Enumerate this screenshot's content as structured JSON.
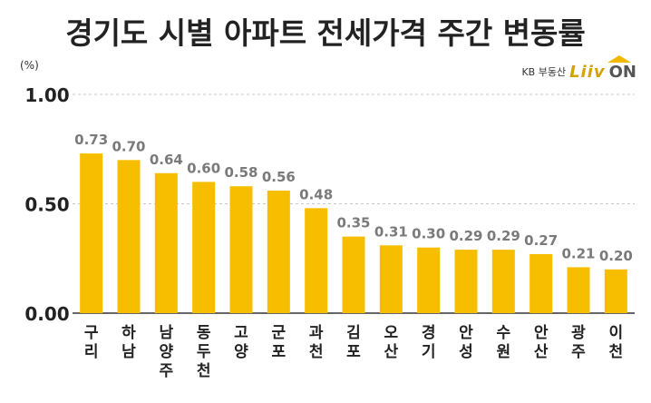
{
  "title": "경기도 시별 아파트 전세가격 주간 변동률",
  "unit_label": "(%)",
  "logo": {
    "text": "KB 부동산",
    "liiv": "Liiv",
    "on": "ON"
  },
  "colors": {
    "bar": "#F7BE00",
    "label": "#7a7a7a",
    "axis": "#333333",
    "grid": "#c8c8c8"
  },
  "chart_data": {
    "type": "bar",
    "categories": [
      "구리",
      "하남",
      "남양주",
      "동두천",
      "고양",
      "군포",
      "과천",
      "김포",
      "오산",
      "경기",
      "안성",
      "수원",
      "안산",
      "광주",
      "이천"
    ],
    "values": [
      0.73,
      0.7,
      0.64,
      0.6,
      0.58,
      0.56,
      0.48,
      0.35,
      0.31,
      0.3,
      0.29,
      0.29,
      0.27,
      0.21,
      0.2
    ],
    "value_labels": [
      "0.73",
      "0.70",
      "0.64",
      "0.60",
      "0.58",
      "0.56",
      "0.48",
      "0.35",
      "0.31",
      "0.30",
      "0.29",
      "0.29",
      "0.27",
      "0.21",
      "0.20"
    ],
    "ylim": [
      0,
      1.0
    ],
    "yticks": [
      0.0,
      0.5,
      1.0
    ],
    "ytick_labels": [
      "0.00",
      "0.50",
      "1.00"
    ],
    "title": "경기도 시별 아파트 전세가격 주간 변동률",
    "xlabel": "",
    "ylabel": "(%)",
    "grid": true
  }
}
